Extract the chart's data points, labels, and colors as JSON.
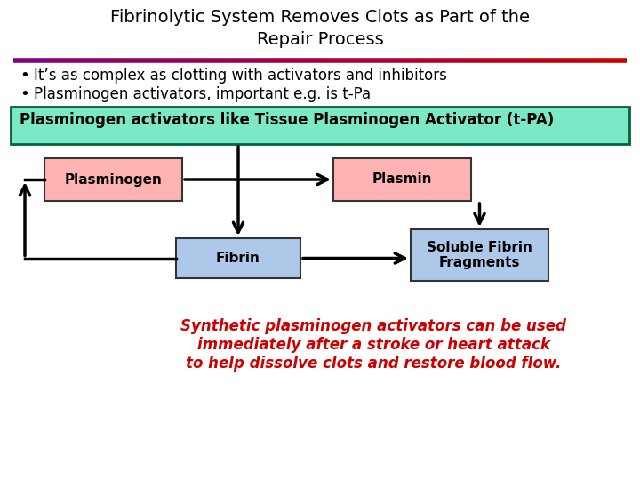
{
  "title_line1": "Fibrinolytic System Removes Clots as Part of the",
  "title_line2": "Repair Process",
  "bullet1": "It’s as complex as clotting with activators and inhibitors",
  "bullet2": "Plasminogen activators, important e.g. is t-Pa",
  "green_box_text": "Plasminogen activators like Tissue Plasminogen Activator (t-PA)",
  "box_plasminogen": "Plasminogen",
  "box_plasmin": "Plasmin",
  "box_fibrin": "Fibrin",
  "box_soluble": "Soluble Fibrin\nFragments",
  "red_text_line1": "Synthetic plasminogen activators can be used",
  "red_text_line2": "immediately after a stroke or heart attack",
  "red_text_line3": "to help dissolve clots and restore blood flow.",
  "bg_color": "#ffffff",
  "title_color": "#000000",
  "bullet_color": "#000000",
  "green_box_bg": "#7de8c8",
  "green_box_border": "#006633",
  "pink_box_bg": "#ffb3b3",
  "pink_box_border": "#333333",
  "blue_box_bg": "#adc8e8",
  "blue_box_border": "#333333",
  "red_text_color": "#cc0000",
  "arrow_color": "#000000"
}
